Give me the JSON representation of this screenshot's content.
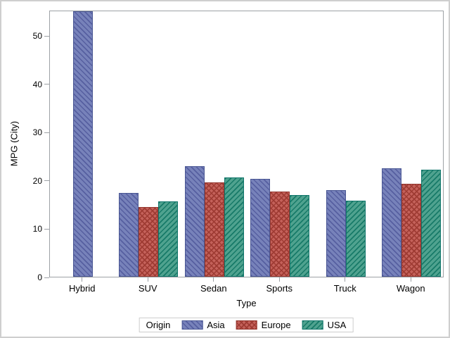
{
  "window": {
    "background": "#ffffff",
    "frame_border_color": "#cfcfcf",
    "axis_color": "#9da1a5",
    "text_color": "#000000",
    "legend_border_color": "#cdcdcd"
  },
  "chart_data": {
    "type": "bar",
    "title": "",
    "xlabel": "Type",
    "ylabel": "MPG (City)",
    "categories": [
      "Hybrid",
      "SUV",
      "Sedan",
      "Sports",
      "Truck",
      "Wagon"
    ],
    "series": [
      {
        "name": "Asia",
        "values": [
          55,
          17.3,
          22.9,
          20.3,
          17.9,
          22.4
        ],
        "fill": "#7782BA",
        "hatch_color": "#565FA0",
        "edge": "#4A5794",
        "hatch": "backslash"
      },
      {
        "name": "Europe",
        "values": [
          null,
          14.5,
          19.5,
          17.6,
          null,
          19.3
        ],
        "fill": "#C4615A",
        "hatch_color": "#9E3B33",
        "edge": "#943830",
        "hatch": "cross"
      },
      {
        "name": "USA",
        "values": [
          null,
          15.6,
          20.6,
          16.9,
          15.8,
          22.2
        ],
        "fill": "#4FA28F",
        "hatch_color": "#177A68",
        "edge": "#0F756A",
        "hatch": "slash"
      }
    ],
    "yticks": [
      0,
      10,
      20,
      30,
      40,
      50
    ],
    "ylim": [
      0,
      55.25
    ],
    "grid": false,
    "legend": {
      "title": "Origin",
      "position": "bottom-center"
    }
  }
}
